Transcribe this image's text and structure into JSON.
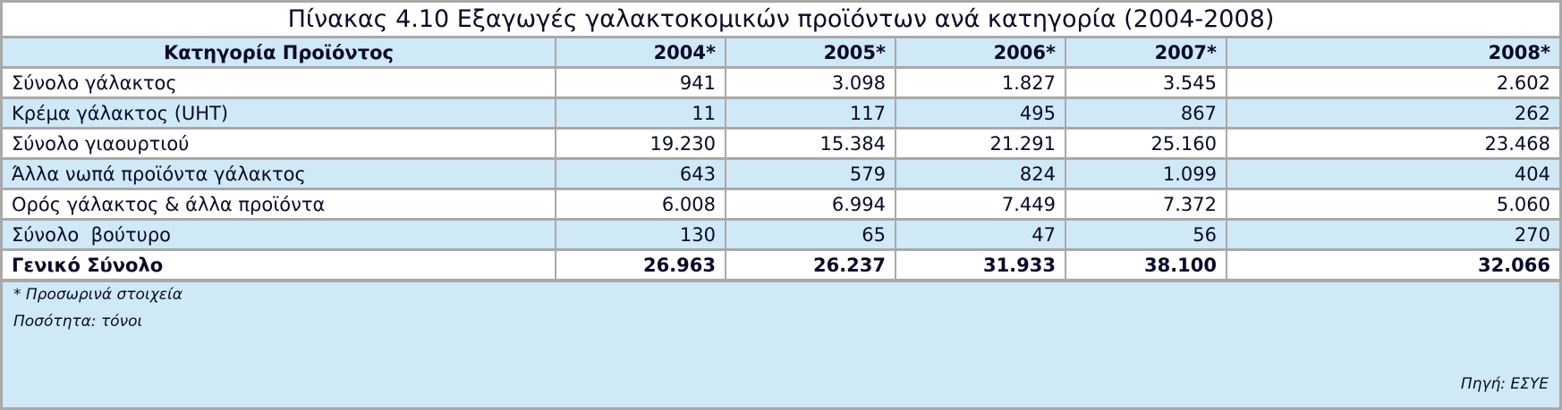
{
  "header": {
    "title": "Πίνακας 4.10 Εξαγωγές γαλακτοκομικών προϊόντων ανά κατηγορία (2004-2008)"
  },
  "table": {
    "columns": [
      "Κατηγορία Προϊόντος",
      "2004*",
      "2005*",
      "2006*",
      "2007*",
      "2008*"
    ],
    "rows": [
      [
        "Σύνολο γάλακτος",
        "941",
        "3.098",
        "1.827",
        "3.545",
        "2.602"
      ],
      [
        "Κρέμα γάλακτος (UHT)",
        "11",
        "117",
        "495",
        "867",
        "262"
      ],
      [
        "Σύνολο γιαουρτιού",
        "19.230",
        "15.384",
        "21.291",
        "25.160",
        "23.468"
      ],
      [
        "Άλλα νωπά προϊόντα γάλακτος",
        "643",
        "579",
        "824",
        "1.099",
        "404"
      ],
      [
        "Ορός γάλακτος & άλλα προϊόντα",
        "6.008",
        "6.994",
        "7.449",
        "7.372",
        "5.060"
      ],
      [
        "Σύνολο  βούτυρο",
        "130",
        "65",
        "47",
        "56",
        "270"
      ]
    ],
    "total": [
      "Γενικό Σύνολο",
      "26.963",
      "26.237",
      "31.933",
      "38.100",
      "32.066"
    ]
  },
  "footer": {
    "notes": [
      "* Προσωρινά στοιχεία",
      "Ποσότητα: τόνοι"
    ],
    "source": "Πηγή: ΕΣΥΕ"
  }
}
